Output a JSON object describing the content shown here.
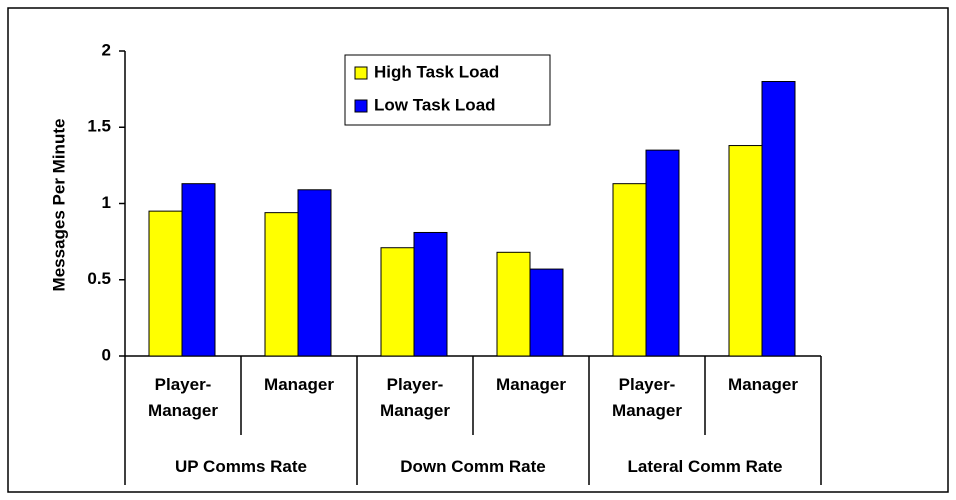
{
  "chart_data": {
    "type": "bar",
    "y_label": "Messages Per Minute",
    "categories": [
      "Player-Manager",
      "Manager",
      "Player-Manager",
      "Manager",
      "Player-Manager",
      "Manager"
    ],
    "category_groups": [
      "UP Comms Rate",
      "Down Comm Rate",
      "Lateral Comm Rate"
    ],
    "series": [
      {
        "name": "High Task Load",
        "color": "#ffff00",
        "values": [
          0.95,
          0.94,
          0.71,
          0.68,
          1.13,
          1.38
        ]
      },
      {
        "name": "Low Task Load",
        "color": "#0000ff",
        "values": [
          1.13,
          1.09,
          0.81,
          0.57,
          1.35,
          1.8
        ]
      }
    ],
    "ylim": [
      0,
      2
    ],
    "yticks": [
      0,
      0.5,
      1,
      1.5,
      2
    ],
    "grid": false,
    "legend": "top"
  }
}
